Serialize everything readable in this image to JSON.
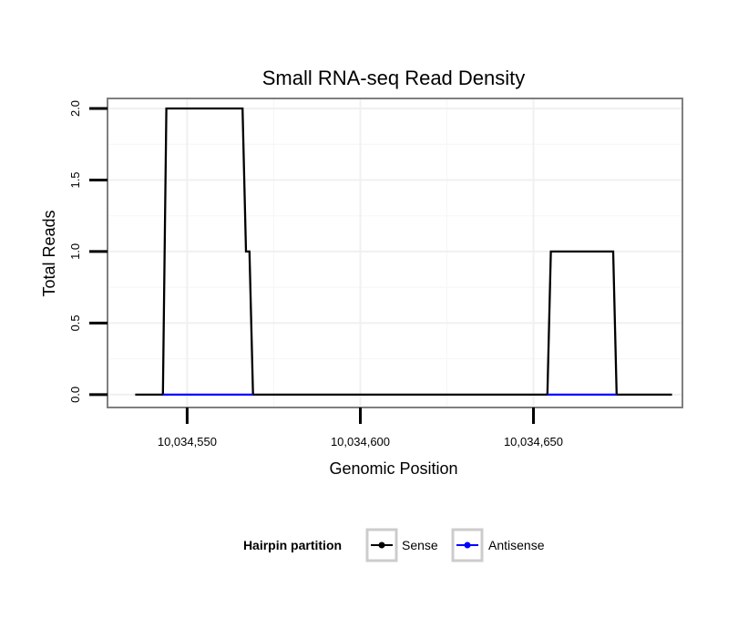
{
  "chart_data": {
    "type": "line",
    "title": "Small RNA-seq Read Density",
    "xlabel": "Genomic Position",
    "ylabel": "Total Reads",
    "xlim": [
      10034527,
      10034693
    ],
    "ylim": [
      -0.09,
      2.07
    ],
    "x_ticks": [
      10034550,
      10034600,
      10034650
    ],
    "x_tick_labels": [
      "10,034,550",
      "10,034,600",
      "10,034,650"
    ],
    "y_ticks": [
      0.0,
      0.5,
      1.0,
      1.5,
      2.0
    ],
    "y_tick_labels": [
      "0.0",
      "0.5",
      "1.0",
      "1.5",
      "2.0"
    ],
    "grid": true,
    "legend": {
      "title": "Hairpin partition",
      "position": "bottom"
    },
    "series": [
      {
        "name": "Sense",
        "color": "#000000",
        "x": [
          10034535,
          10034543,
          10034544,
          10034566,
          10034567,
          10034568,
          10034569,
          10034654,
          10034655,
          10034673,
          10034674,
          10034690
        ],
        "y": [
          0,
          0,
          2,
          2,
          1,
          1,
          0,
          0,
          1,
          1,
          0,
          0
        ]
      },
      {
        "name": "Antisense",
        "color": "#0000ff",
        "segments": [
          {
            "x": [
              10034543,
              10034569
            ],
            "y": [
              0,
              0
            ]
          },
          {
            "x": [
              10034654,
              10034674
            ],
            "y": [
              0,
              0
            ]
          }
        ]
      }
    ]
  }
}
